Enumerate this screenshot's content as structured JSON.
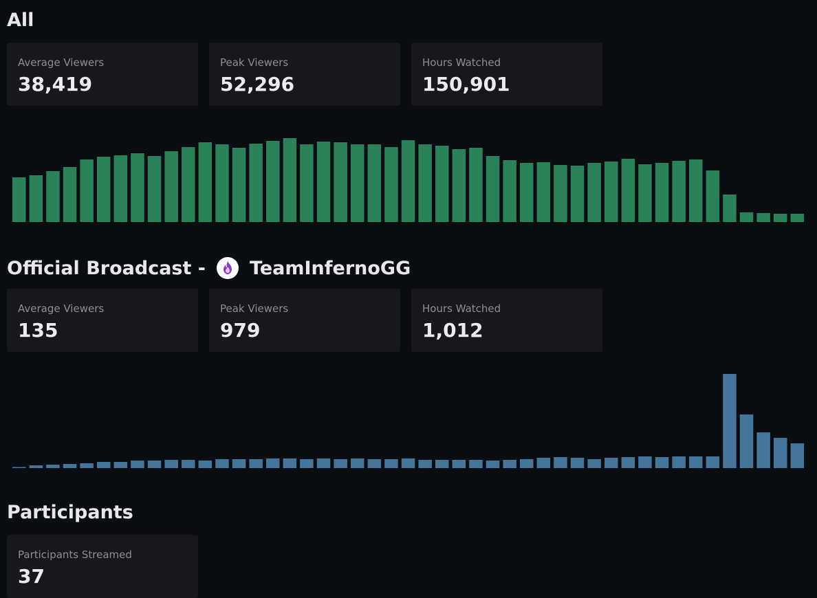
{
  "sections": {
    "all": {
      "title": "All",
      "stats": [
        {
          "label": "Average Viewers",
          "value": "38,419"
        },
        {
          "label": "Peak Viewers",
          "value": "52,296"
        },
        {
          "label": "Hours Watched",
          "value": "150,901"
        }
      ]
    },
    "official": {
      "title": "Official Broadcast -",
      "channel": "TeamInfernoGG",
      "stats": [
        {
          "label": "Average Viewers",
          "value": "135"
        },
        {
          "label": "Peak Viewers",
          "value": "979"
        },
        {
          "label": "Hours Watched",
          "value": "1,012"
        }
      ]
    },
    "participants": {
      "title": "Participants",
      "stats": [
        {
          "label": "Participants Streamed",
          "value": "37"
        }
      ]
    }
  },
  "chart_data": [
    {
      "type": "bar",
      "name": "all-viewers",
      "color": "#2a8259",
      "ylim": [
        0,
        122
      ],
      "values": [
        65,
        68,
        74,
        80,
        91,
        95,
        97,
        100,
        96,
        103,
        109,
        116,
        113,
        108,
        114,
        118,
        122,
        113,
        117,
        116,
        113,
        113,
        109,
        119,
        113,
        111,
        106,
        108,
        96,
        90,
        86,
        87,
        83,
        82,
        86,
        88,
        92,
        84,
        86,
        89,
        91,
        75,
        40,
        14,
        13,
        12,
        12
      ]
    },
    {
      "type": "bar",
      "name": "official-viewers",
      "color": "#44769c",
      "ylim": [
        0,
        137
      ],
      "values": [
        1,
        4,
        5,
        6,
        7,
        9,
        9,
        11,
        11,
        12,
        12,
        11,
        13,
        13,
        13,
        14,
        14,
        13,
        14,
        13,
        14,
        13,
        13,
        14,
        12,
        12,
        12,
        12,
        11,
        12,
        13,
        15,
        16,
        15,
        13,
        15,
        16,
        17,
        16,
        17,
        17,
        17,
        137,
        78,
        52,
        44,
        36
      ]
    }
  ]
}
